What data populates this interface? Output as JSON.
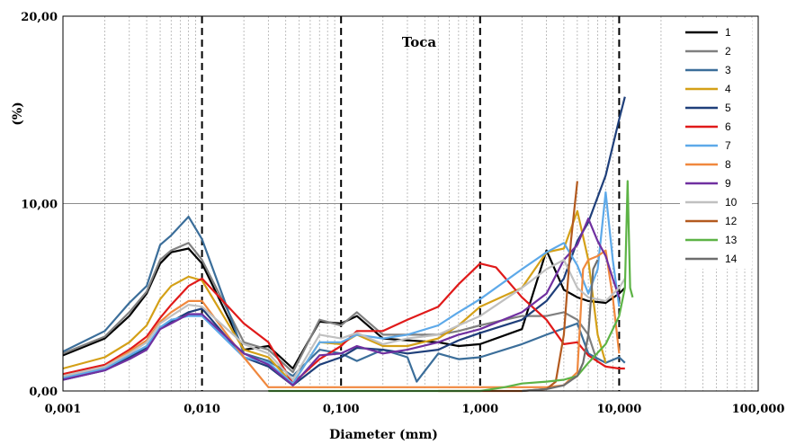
{
  "chart_data": {
    "type": "line",
    "title": "Toca",
    "xlabel": "Diameter (mm)",
    "ylabel": "(%)",
    "x_scale": "log",
    "xlim": [
      0.001,
      100
    ],
    "ylim": [
      0,
      20
    ],
    "x_ticks": [
      {
        "value": 0.001,
        "label": "0,001"
      },
      {
        "value": 0.01,
        "label": "0,010"
      },
      {
        "value": 0.1,
        "label": "0,100"
      },
      {
        "value": 1,
        "label": "1,000"
      },
      {
        "value": 10,
        "label": "10,000"
      },
      {
        "value": 100,
        "label": "100,000"
      }
    ],
    "y_ticks": [
      {
        "value": 0,
        "label": "0,00"
      },
      {
        "value": 10,
        "label": "10,00"
      },
      {
        "value": 20,
        "label": "20,00"
      }
    ],
    "legend_position": "right",
    "series": [
      {
        "name": "1",
        "color": "#000000",
        "points": [
          [
            0.001,
            1.9
          ],
          [
            0.002,
            2.8
          ],
          [
            0.003,
            4.0
          ],
          [
            0.004,
            5.2
          ],
          [
            0.005,
            6.8
          ],
          [
            0.006,
            7.4
          ],
          [
            0.008,
            7.6
          ],
          [
            0.01,
            6.8
          ],
          [
            0.02,
            2.2
          ],
          [
            0.03,
            2.4
          ],
          [
            0.045,
            1.2
          ],
          [
            0.07,
            3.7
          ],
          [
            0.1,
            3.6
          ],
          [
            0.13,
            4.0
          ],
          [
            0.2,
            2.8
          ],
          [
            0.3,
            2.7
          ],
          [
            0.5,
            2.6
          ],
          [
            0.7,
            2.4
          ],
          [
            1,
            2.5
          ],
          [
            2,
            3.3
          ],
          [
            3,
            7.5
          ],
          [
            4,
            5.4
          ],
          [
            5,
            5.0
          ],
          [
            6,
            4.8
          ],
          [
            8,
            4.7
          ],
          [
            10,
            5.2
          ],
          [
            11,
            5.5
          ]
        ]
      },
      {
        "name": "2",
        "color": "#808080",
        "points": [
          [
            0.001,
            2.0
          ],
          [
            0.002,
            2.9
          ],
          [
            0.003,
            4.2
          ],
          [
            0.004,
            5.3
          ],
          [
            0.005,
            7.0
          ],
          [
            0.006,
            7.5
          ],
          [
            0.008,
            7.9
          ],
          [
            0.01,
            7.0
          ],
          [
            0.02,
            2.6
          ],
          [
            0.03,
            2.2
          ],
          [
            0.045,
            1.0
          ],
          [
            0.07,
            3.8
          ],
          [
            0.1,
            3.5
          ],
          [
            0.13,
            4.2
          ],
          [
            0.2,
            3.0
          ],
          [
            0.3,
            3.0
          ],
          [
            0.5,
            3.0
          ],
          [
            0.7,
            3.2
          ],
          [
            1,
            3.5
          ],
          [
            2,
            4.0
          ],
          [
            3,
            4.0
          ],
          [
            4,
            4.2
          ],
          [
            5,
            3.8
          ],
          [
            6,
            3.0
          ],
          [
            7,
            1.5
          ]
        ]
      },
      {
        "name": "3",
        "color": "#3B6E9A",
        "points": [
          [
            0.001,
            2.1
          ],
          [
            0.002,
            3.2
          ],
          [
            0.003,
            4.7
          ],
          [
            0.004,
            5.6
          ],
          [
            0.005,
            7.8
          ],
          [
            0.006,
            8.3
          ],
          [
            0.008,
            9.3
          ],
          [
            0.01,
            8.1
          ],
          [
            0.02,
            2.0
          ],
          [
            0.03,
            1.6
          ],
          [
            0.045,
            0.8
          ],
          [
            0.07,
            2.2
          ],
          [
            0.1,
            2.0
          ],
          [
            0.13,
            1.6
          ],
          [
            0.2,
            2.2
          ],
          [
            0.3,
            1.8
          ],
          [
            0.35,
            0.5
          ],
          [
            0.5,
            2.0
          ],
          [
            0.7,
            1.7
          ],
          [
            1,
            1.8
          ],
          [
            2,
            2.5
          ],
          [
            3,
            3.0
          ],
          [
            5,
            3.6
          ],
          [
            6,
            2.0
          ],
          [
            8,
            1.5
          ],
          [
            10,
            1.8
          ],
          [
            11,
            1.5
          ]
        ]
      },
      {
        "name": "4",
        "color": "#D4A017",
        "points": [
          [
            0.001,
            1.2
          ],
          [
            0.002,
            1.8
          ],
          [
            0.003,
            2.6
          ],
          [
            0.004,
            3.5
          ],
          [
            0.005,
            4.9
          ],
          [
            0.006,
            5.6
          ],
          [
            0.008,
            6.1
          ],
          [
            0.01,
            5.9
          ],
          [
            0.02,
            2.2
          ],
          [
            0.03,
            1.8
          ],
          [
            0.045,
            0.4
          ],
          [
            0.07,
            2.6
          ],
          [
            0.1,
            2.5
          ],
          [
            0.13,
            3.0
          ],
          [
            0.2,
            2.4
          ],
          [
            0.3,
            2.4
          ],
          [
            0.5,
            2.8
          ],
          [
            0.7,
            3.5
          ],
          [
            1,
            4.5
          ],
          [
            2,
            5.5
          ],
          [
            3,
            7.4
          ],
          [
            4,
            7.6
          ],
          [
            5,
            9.6
          ],
          [
            6,
            7.0
          ],
          [
            7,
            3.0
          ],
          [
            8,
            1.5
          ]
        ]
      },
      {
        "name": "5",
        "color": "#1F3F7A",
        "points": [
          [
            0.001,
            0.6
          ],
          [
            0.002,
            1.1
          ],
          [
            0.003,
            1.8
          ],
          [
            0.004,
            2.3
          ],
          [
            0.005,
            3.4
          ],
          [
            0.006,
            3.7
          ],
          [
            0.008,
            4.2
          ],
          [
            0.01,
            4.4
          ],
          [
            0.02,
            1.8
          ],
          [
            0.03,
            1.3
          ],
          [
            0.045,
            0.3
          ],
          [
            0.07,
            1.4
          ],
          [
            0.1,
            1.8
          ],
          [
            0.13,
            2.3
          ],
          [
            0.2,
            2.2
          ],
          [
            0.3,
            2.0
          ],
          [
            0.5,
            2.2
          ],
          [
            0.7,
            2.7
          ],
          [
            1,
            3.1
          ],
          [
            2,
            3.8
          ],
          [
            3,
            4.8
          ],
          [
            4,
            6.0
          ],
          [
            5,
            8.0
          ],
          [
            6,
            9.0
          ],
          [
            8,
            11.5
          ],
          [
            10,
            14.5
          ],
          [
            11,
            15.7
          ]
        ]
      },
      {
        "name": "6",
        "color": "#E01A1A",
        "points": [
          [
            0.001,
            0.9
          ],
          [
            0.002,
            1.4
          ],
          [
            0.003,
            2.2
          ],
          [
            0.004,
            2.9
          ],
          [
            0.005,
            3.9
          ],
          [
            0.006,
            4.6
          ],
          [
            0.008,
            5.6
          ],
          [
            0.01,
            6.0
          ],
          [
            0.02,
            3.6
          ],
          [
            0.03,
            2.6
          ],
          [
            0.045,
            0.4
          ],
          [
            0.07,
            1.7
          ],
          [
            0.1,
            2.4
          ],
          [
            0.13,
            3.2
          ],
          [
            0.2,
            3.2
          ],
          [
            0.3,
            3.8
          ],
          [
            0.5,
            4.5
          ],
          [
            0.7,
            5.7
          ],
          [
            1,
            6.8
          ],
          [
            1.3,
            6.6
          ],
          [
            2,
            5.0
          ],
          [
            3,
            3.8
          ],
          [
            4,
            2.5
          ],
          [
            5,
            2.6
          ],
          [
            6,
            1.9
          ],
          [
            8,
            1.3
          ],
          [
            10,
            1.2
          ],
          [
            11,
            1.2
          ]
        ]
      },
      {
        "name": "7",
        "color": "#5DA9E9",
        "points": [
          [
            0.001,
            0.7
          ],
          [
            0.002,
            1.2
          ],
          [
            0.003,
            1.9
          ],
          [
            0.004,
            2.4
          ],
          [
            0.005,
            3.4
          ],
          [
            0.006,
            3.8
          ],
          [
            0.008,
            4.0
          ],
          [
            0.01,
            4.0
          ],
          [
            0.02,
            1.8
          ],
          [
            0.03,
            1.5
          ],
          [
            0.045,
            0.4
          ],
          [
            0.07,
            2.6
          ],
          [
            0.1,
            2.6
          ],
          [
            0.13,
            3.0
          ],
          [
            0.2,
            2.8
          ],
          [
            0.3,
            3.0
          ],
          [
            0.5,
            3.5
          ],
          [
            0.7,
            4.2
          ],
          [
            1,
            4.9
          ],
          [
            2,
            6.5
          ],
          [
            3,
            7.4
          ],
          [
            4,
            7.9
          ],
          [
            5,
            6.7
          ],
          [
            6,
            5.2
          ],
          [
            7,
            6.5
          ],
          [
            8,
            10.6
          ],
          [
            9,
            7.0
          ],
          [
            10,
            4.5
          ]
        ]
      },
      {
        "name": "8",
        "color": "#F0883E",
        "points": [
          [
            0.001,
            0.8
          ],
          [
            0.002,
            1.3
          ],
          [
            0.003,
            2.1
          ],
          [
            0.004,
            2.7
          ],
          [
            0.005,
            3.7
          ],
          [
            0.006,
            4.2
          ],
          [
            0.008,
            4.8
          ],
          [
            0.01,
            4.8
          ],
          [
            0.02,
            1.8
          ],
          [
            0.03,
            0.2
          ],
          [
            0.045,
            0.2
          ],
          [
            0.07,
            0.2
          ],
          [
            0.1,
            0.2
          ],
          [
            0.2,
            0.2
          ],
          [
            0.5,
            0.2
          ],
          [
            1,
            0.2
          ],
          [
            2,
            0.2
          ],
          [
            3,
            0.2
          ],
          [
            4,
            0.3
          ],
          [
            5,
            1.0
          ],
          [
            5.5,
            6.5
          ],
          [
            6,
            7.0
          ],
          [
            7,
            7.2
          ],
          [
            8,
            7.5
          ],
          [
            9,
            5.0
          ],
          [
            10,
            2.0
          ]
        ]
      },
      {
        "name": "9",
        "color": "#7030A0",
        "points": [
          [
            0.001,
            0.6
          ],
          [
            0.002,
            1.1
          ],
          [
            0.003,
            1.7
          ],
          [
            0.004,
            2.2
          ],
          [
            0.005,
            3.3
          ],
          [
            0.006,
            3.6
          ],
          [
            0.008,
            4.1
          ],
          [
            0.01,
            4.1
          ],
          [
            0.02,
            2.0
          ],
          [
            0.03,
            1.4
          ],
          [
            0.045,
            0.3
          ],
          [
            0.07,
            1.9
          ],
          [
            0.1,
            2.0
          ],
          [
            0.13,
            2.4
          ],
          [
            0.2,
            2.0
          ],
          [
            0.3,
            2.2
          ],
          [
            0.5,
            2.6
          ],
          [
            0.7,
            3.0
          ],
          [
            1,
            3.3
          ],
          [
            2,
            4.2
          ],
          [
            3,
            5.2
          ],
          [
            4,
            7.0
          ],
          [
            5,
            7.8
          ],
          [
            6,
            9.2
          ],
          [
            7,
            8.0
          ],
          [
            8,
            7.2
          ],
          [
            9,
            6.0
          ],
          [
            10,
            5.0
          ]
        ]
      },
      {
        "name": "10",
        "color": "#C0C0C0",
        "points": [
          [
            0.001,
            0.8
          ],
          [
            0.002,
            1.3
          ],
          [
            0.003,
            2.0
          ],
          [
            0.004,
            2.6
          ],
          [
            0.005,
            3.6
          ],
          [
            0.006,
            4.0
          ],
          [
            0.008,
            4.6
          ],
          [
            0.01,
            4.5
          ],
          [
            0.02,
            2.5
          ],
          [
            0.03,
            2.0
          ],
          [
            0.045,
            0.6
          ],
          [
            0.07,
            3.0
          ],
          [
            0.1,
            2.8
          ],
          [
            0.13,
            3.1
          ],
          [
            0.2,
            2.5
          ],
          [
            0.3,
            2.8
          ],
          [
            0.5,
            3.0
          ],
          [
            0.7,
            3.5
          ],
          [
            1,
            4.0
          ],
          [
            2,
            5.5
          ],
          [
            3,
            6.5
          ],
          [
            4,
            7.0
          ],
          [
            5,
            5.5
          ],
          [
            6,
            5.0
          ],
          [
            8,
            4.8
          ],
          [
            10,
            5.5
          ],
          [
            11,
            6.0
          ]
        ]
      },
      {
        "name": "12",
        "color": "#B35A1F",
        "points": [
          [
            0.5,
            0.0
          ],
          [
            1,
            0.0
          ],
          [
            2,
            0.0
          ],
          [
            3,
            0.1
          ],
          [
            3.5,
            0.5
          ],
          [
            4,
            3.0
          ],
          [
            4.5,
            8.0
          ],
          [
            5,
            11.2
          ]
        ]
      },
      {
        "name": "13",
        "color": "#5DB346",
        "points": [
          [
            0.03,
            0.0
          ],
          [
            0.1,
            0.0
          ],
          [
            0.3,
            0.0
          ],
          [
            1,
            0.0
          ],
          [
            1.5,
            0.2
          ],
          [
            2,
            0.4
          ],
          [
            3,
            0.5
          ],
          [
            4,
            0.6
          ],
          [
            5,
            0.8
          ],
          [
            6,
            1.5
          ],
          [
            8,
            2.5
          ],
          [
            10,
            4.0
          ],
          [
            11,
            5.5
          ],
          [
            11.5,
            11.2
          ],
          [
            12,
            5.5
          ],
          [
            12.5,
            5.0
          ]
        ]
      },
      {
        "name": "14",
        "color": "#6E6E6E",
        "points": [
          [
            2,
            0.0
          ],
          [
            3,
            0.1
          ],
          [
            4,
            0.3
          ],
          [
            5,
            0.8
          ],
          [
            5.5,
            1.5
          ],
          [
            6,
            3.0
          ],
          [
            6.5,
            6.5
          ],
          [
            7,
            7.0
          ]
        ]
      }
    ]
  }
}
